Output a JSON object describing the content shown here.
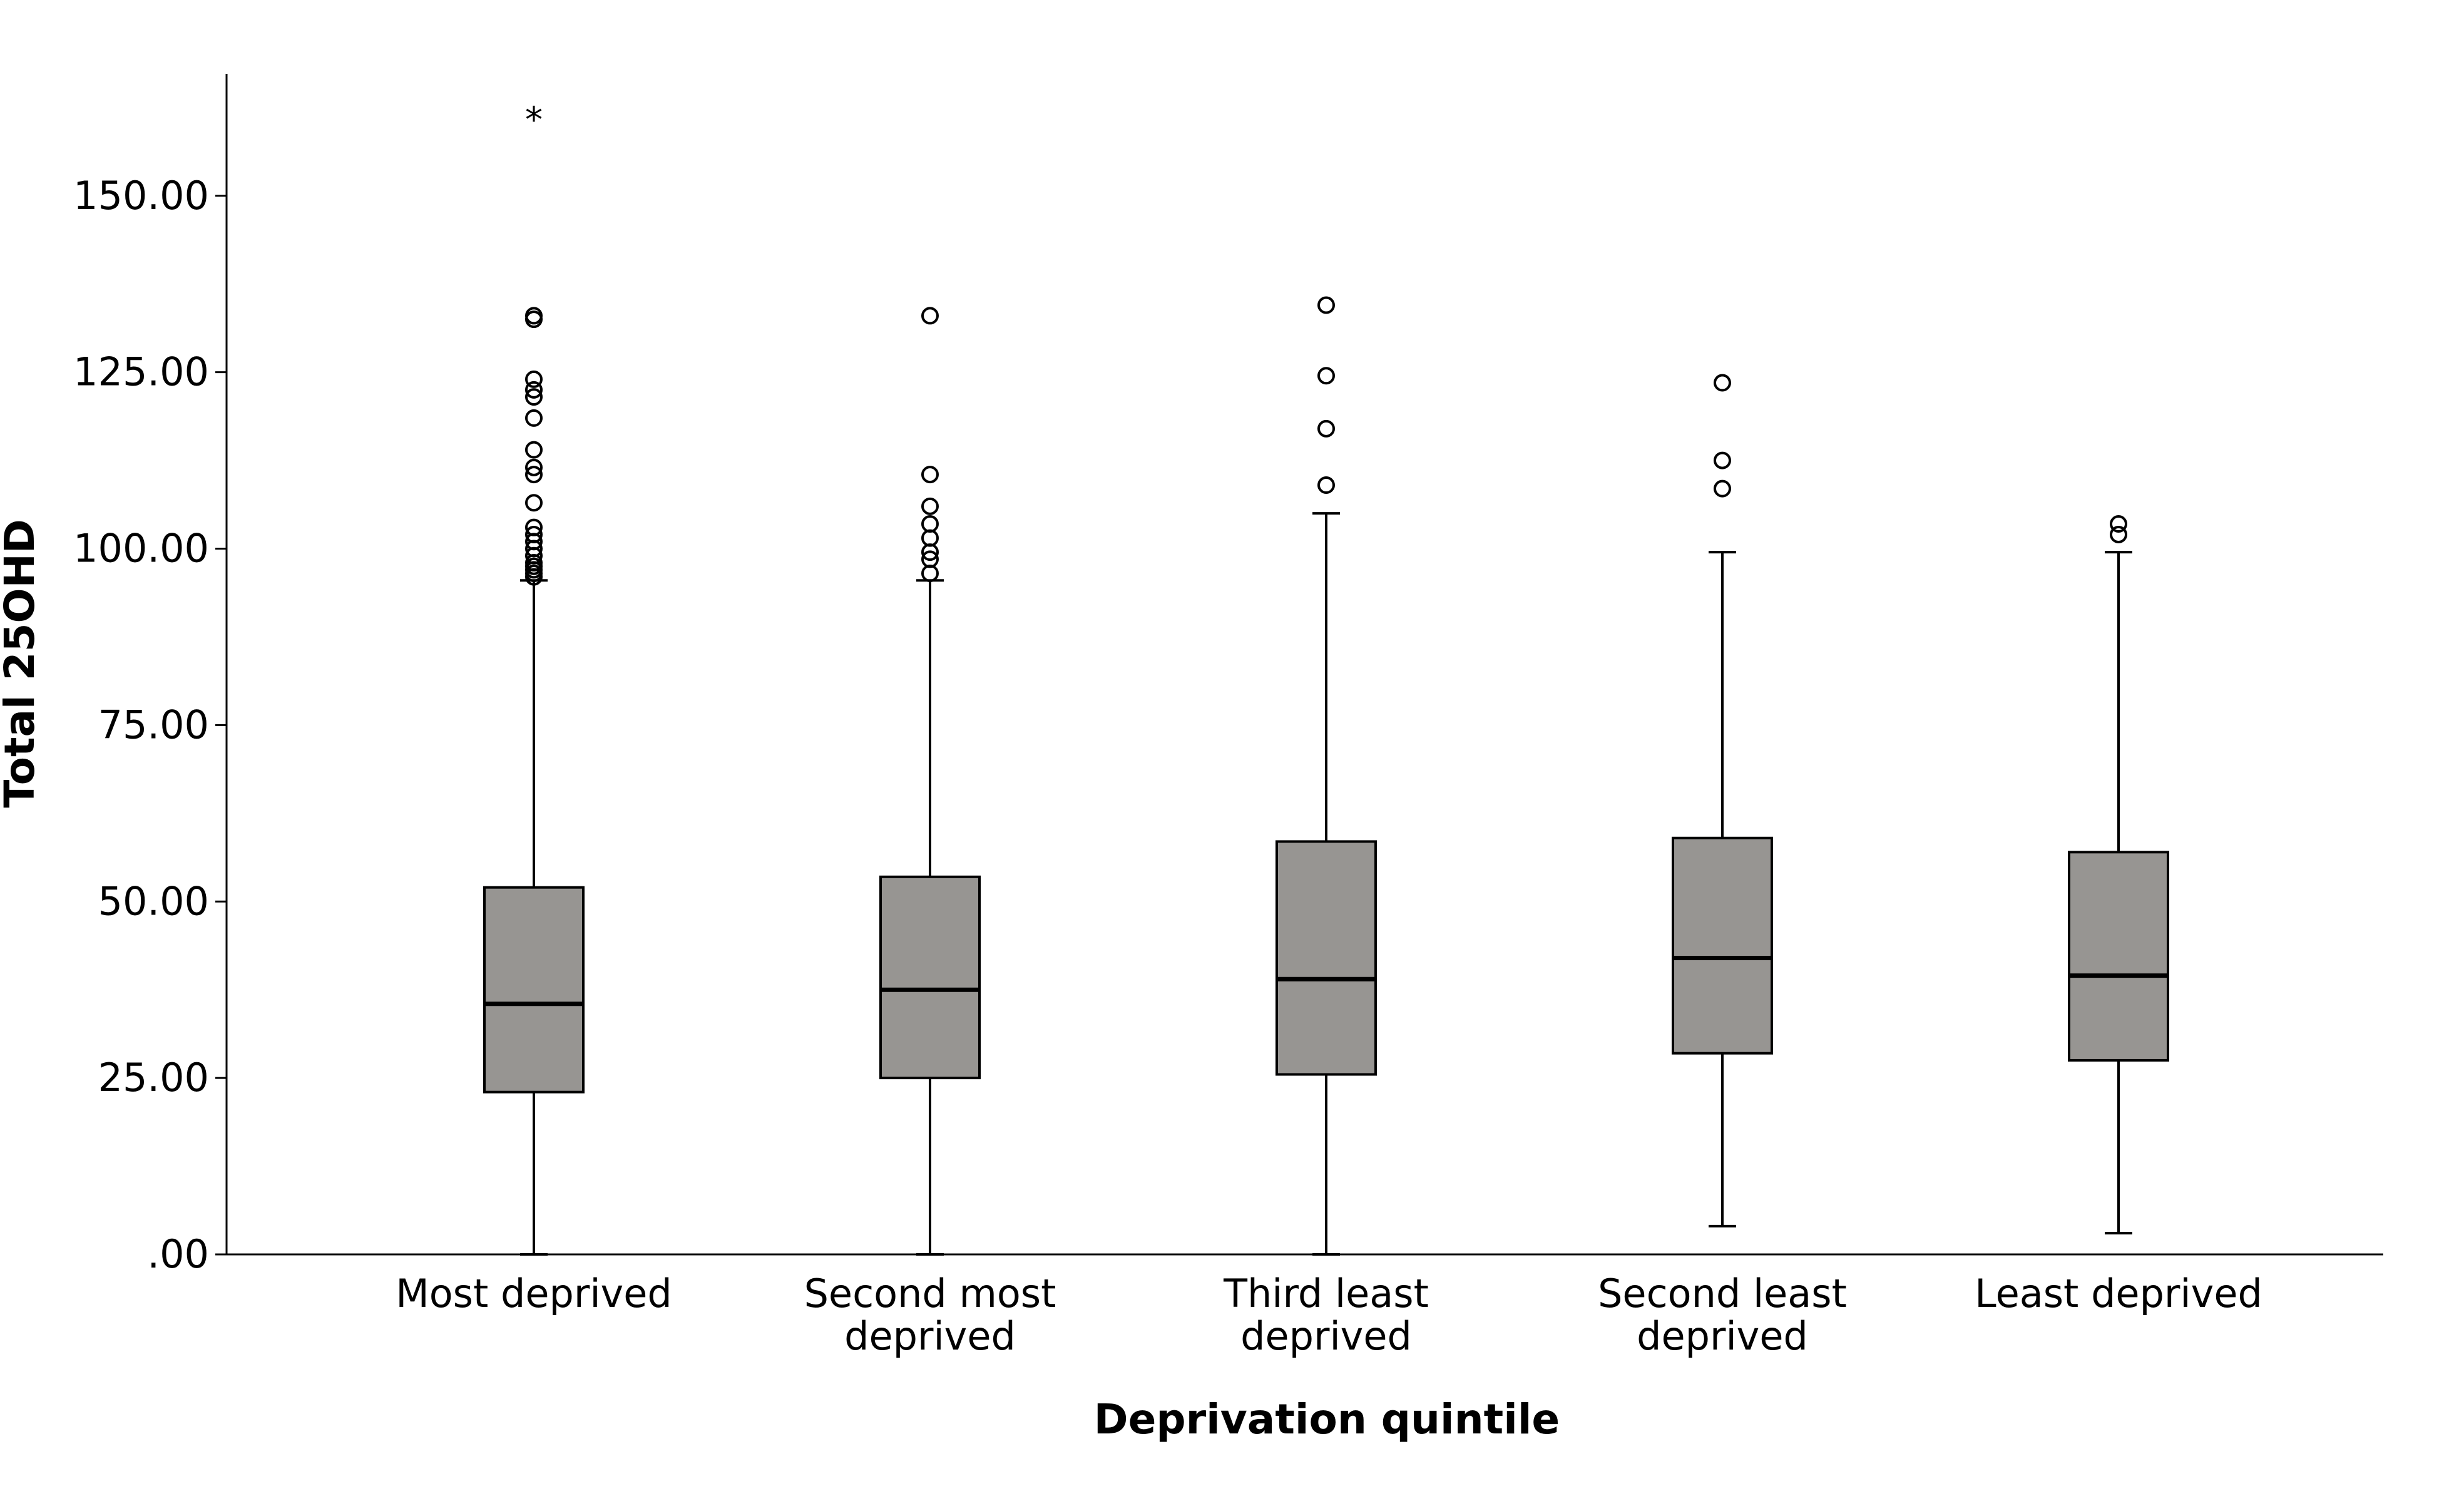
{
  "chart_data": {
    "type": "boxplot",
    "title": "",
    "xlabel": "Deprivation quintile",
    "ylabel": "Total 25OHD",
    "ylim": [
      0,
      167
    ],
    "yticks": [
      0,
      25,
      50,
      75,
      100,
      125,
      150
    ],
    "ytick_labels": [
      ".00",
      "25.00",
      "50.00",
      "75.00",
      "100.00",
      "125.00",
      "150.00"
    ],
    "grid": false,
    "box_color": "#979592",
    "line_color": "#000000",
    "categories": [
      {
        "label_lines": [
          "Most deprived"
        ],
        "whisker_low": 0.0,
        "q1": 23.0,
        "median": 35.5,
        "q3": 52.0,
        "whisker_high": 95.5,
        "outliers": [
          96,
          96.5,
          97,
          97.5,
          98,
          99,
          100,
          101,
          102,
          103,
          106.5,
          110.5,
          111.5,
          114,
          118.5,
          121.5,
          122.5,
          124,
          132.5,
          133
        ],
        "extremes": [
          161
        ]
      },
      {
        "label_lines": [
          "Second most",
          "deprived"
        ],
        "whisker_low": 0.0,
        "q1": 25.0,
        "median": 37.5,
        "q3": 53.5,
        "whisker_high": 95.5,
        "outliers": [
          96.5,
          98.5,
          99.5,
          101.5,
          103.5,
          106,
          110.5,
          133
        ],
        "extremes": []
      },
      {
        "label_lines": [
          "Third least",
          "deprived"
        ],
        "whisker_low": 0.0,
        "q1": 25.5,
        "median": 39.0,
        "q3": 58.5,
        "whisker_high": 105.0,
        "outliers": [
          109,
          117,
          124.5,
          134.5
        ],
        "extremes": []
      },
      {
        "label_lines": [
          "Second least",
          "deprived"
        ],
        "whisker_low": 4.0,
        "q1": 28.5,
        "median": 42.0,
        "q3": 59.0,
        "whisker_high": 99.5,
        "outliers": [
          108.5,
          112.5,
          123.5
        ],
        "extremes": []
      },
      {
        "label_lines": [
          "Least deprived"
        ],
        "whisker_low": 3.0,
        "q1": 27.5,
        "median": 39.5,
        "q3": 57.0,
        "whisker_high": 99.5,
        "outliers": [
          102,
          103.5
        ],
        "extremes": []
      }
    ]
  }
}
